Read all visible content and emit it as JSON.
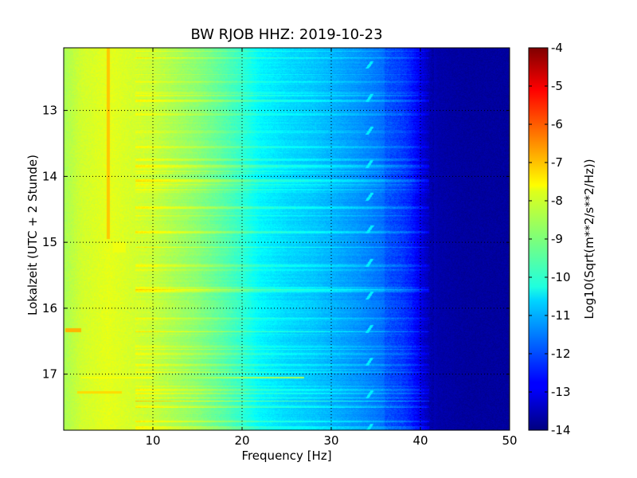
{
  "chart_data": {
    "type": "heatmap",
    "title": "BW RJOB HHZ: 2019-10-23",
    "xlabel": "Frequency [Hz]",
    "ylabel": "Lokalzeit (UTC + 2 Stunde)",
    "xlim": [
      0,
      50
    ],
    "ylim": [
      12.05,
      17.85
    ],
    "y_inverted": true,
    "grid": true,
    "x_ticks": [
      10,
      20,
      30,
      40,
      50
    ],
    "y_ticks": [
      13,
      14,
      15,
      16,
      17
    ],
    "colormap": "jet",
    "colorbar": {
      "label": "Log10(Sqrt(m**2/s**2/Hz))",
      "range": [
        -14,
        -4
      ],
      "ticks": [
        -4,
        -5,
        -6,
        -7,
        -8,
        -9,
        -10,
        -11,
        -12,
        -13,
        -14
      ]
    },
    "spectrum_profile": {
      "frequency_hz": [
        0,
        2,
        5,
        10,
        15,
        18,
        20,
        22,
        25,
        28,
        30,
        33,
        36,
        38,
        39,
        40,
        41,
        42,
        45,
        50
      ],
      "log10_amplitude": [
        -8.6,
        -8.2,
        -8.0,
        -8.3,
        -8.9,
        -9.4,
        -9.8,
        -10.3,
        -10.6,
        -10.8,
        -11.0,
        -11.3,
        -11.7,
        -12.0,
        -12.3,
        -12.8,
        -13.3,
        -13.6,
        -13.7,
        -13.7
      ]
    },
    "features": {
      "line_5hz": {
        "frequency_hz": 5.0,
        "time_range": [
          12.05,
          14.95
        ],
        "log10_amplitude": -7.2
      },
      "burst_5_6hz": {
        "frequency_range": [
          5.5,
          7.0
        ],
        "time_range": [
          15.0,
          15.15
        ],
        "log10_amplitude": -7.9
      },
      "band_12_14hz": {
        "frequency_range": [
          12.0,
          14.0
        ],
        "time": 14.63,
        "log10_amplitude": -8.6
      },
      "line_0_2hz": {
        "frequency_range": [
          0.2,
          2.0
        ],
        "time_range": [
          16.3,
          16.36
        ],
        "log10_amplitude": -7.0
      },
      "line_17_05": {
        "frequency_range": [
          2,
          27
        ],
        "time": 17.05,
        "log10_amplitude": -7.8
      },
      "line_17_3": {
        "frequency_range": [
          1.5,
          6.5
        ],
        "time": 17.28,
        "log10_amplitude": -7.4
      },
      "harmonic_arcs_hz": [
        34.0,
        34.6
      ]
    }
  }
}
